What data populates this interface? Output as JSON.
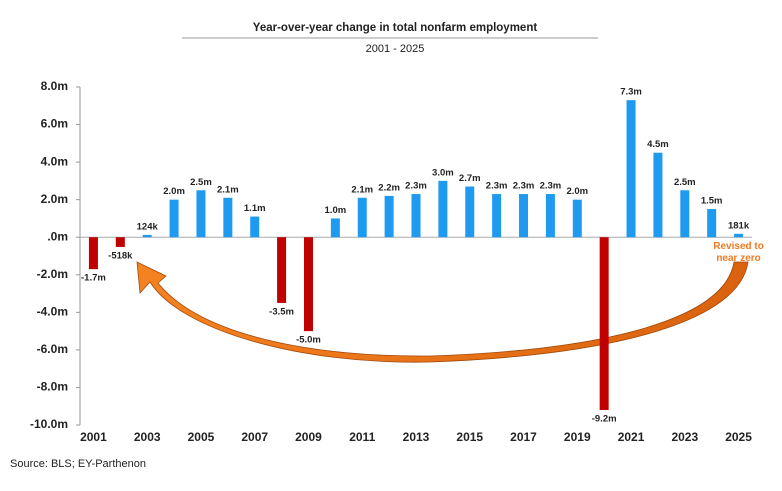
{
  "chart_data": {
    "type": "bar",
    "title": "Year-over-year change in total nonfarm employment",
    "subtitle": "2001 - 2025",
    "title_color": "#1e9bf0",
    "categories": [
      "2001",
      null,
      "2003",
      null,
      "2005",
      null,
      "2007",
      null,
      "2009",
      null,
      "2011",
      null,
      "2013",
      null,
      "2015",
      null,
      "2017",
      null,
      "2019",
      null,
      "2021",
      null,
      "2023",
      null,
      "2025"
    ],
    "values": [
      -1.7,
      -0.518,
      0.124,
      2.0,
      2.5,
      2.1,
      1.1,
      -3.5,
      -5.0,
      1.0,
      2.1,
      2.2,
      2.3,
      3.0,
      2.7,
      2.3,
      2.3,
      2.3,
      2.0,
      -9.2,
      7.3,
      4.5,
      2.5,
      1.5,
      0.181
    ],
    "value_labels": [
      "-1.7m",
      "-518k",
      "124k",
      "2.0m",
      "2.5m",
      "2.1m",
      "1.1m",
      "-3.5m",
      "-5.0m",
      "1.0m",
      "2.1m",
      "2.2m",
      "2.3m",
      "3.0m",
      "2.7m",
      "2.3m",
      "2.3m",
      "2.3m",
      "2.0m",
      "-9.2m",
      "7.3m",
      "4.5m",
      "2.5m",
      "1.5m",
      "181k"
    ],
    "positive_color": "#1e9bf0",
    "negative_color": "#c00000",
    "ylim": [
      -10,
      8
    ],
    "yticks": [
      {
        "value": 8,
        "label": "8.0m"
      },
      {
        "value": 6,
        "label": "6.0m"
      },
      {
        "value": 4,
        "label": "4.0m"
      },
      {
        "value": 2,
        "label": "2.0m"
      },
      {
        "value": 0,
        "label": ".0m"
      },
      {
        "value": -2,
        "label": "-2.0m"
      },
      {
        "value": -4,
        "label": "-4.0m"
      },
      {
        "value": -6,
        "label": "-6.0m"
      },
      {
        "value": -8,
        "label": "-8.0m"
      },
      {
        "value": -10,
        "label": "-10.0m"
      }
    ],
    "grid": false,
    "annotation": {
      "lines": [
        "Revised to",
        "near zero"
      ],
      "color": "#f07a1e"
    },
    "source": "Source: BLS; EY-Parthenon"
  }
}
